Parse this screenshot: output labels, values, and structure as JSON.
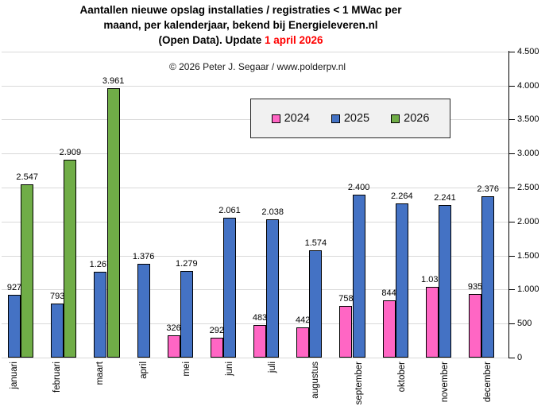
{
  "title": {
    "line1": "Aantallen nieuwe opslag installaties / registraties < 1 MWac per",
    "line2": "maand, per kalenderjaar, bekend bij Energieleveren.nl",
    "line3_black": "(Open Data). Update ",
    "line3_red": "1 april 2026",
    "red_color": "#ff0000"
  },
  "copyright": "© 2026 Peter J. Segaar / www.polderpv.nl",
  "chart_data": {
    "type": "bar",
    "title": "Aantallen nieuwe opslag installaties / registraties < 1 MWac per maand, per kalenderjaar, bekend bij Energieleveren.nl (Open Data). Update 1 april 2026",
    "xlabel": "",
    "ylabel": "",
    "categories": [
      "januari",
      "februari",
      "maart",
      "april",
      "mei",
      "juni",
      "juli",
      "augustus",
      "september",
      "oktober",
      "november",
      "december"
    ],
    "series": [
      {
        "name": "2024",
        "color": "#FF66C4",
        "values": [
          null,
          null,
          null,
          null,
          326,
          292,
          483,
          442,
          758,
          844,
          1036,
          935
        ]
      },
      {
        "name": "2025",
        "color": "#4472C4",
        "values": [
          927,
          793,
          1267,
          1376,
          1279,
          2061,
          2038,
          1574,
          2400,
          2264,
          2241,
          2376
        ]
      },
      {
        "name": "2026",
        "color": "#70AD47",
        "values": [
          2547,
          2909,
          3961,
          null,
          null,
          null,
          null,
          null,
          null,
          null,
          null,
          null
        ]
      }
    ],
    "ylim": [
      0,
      4500
    ],
    "ytick_step": 500,
    "yticks": [
      "0",
      "500",
      "1.000",
      "1.500",
      "2.000",
      "2.500",
      "3.000",
      "3.500",
      "4.000",
      "4.500"
    ],
    "grid": true,
    "axis_side": "right",
    "legend_position": "top-center",
    "number_format": "thousands-dot",
    "gridline_color": "#d9d9d9",
    "axis_color": "#000000"
  },
  "legend": {
    "items": [
      {
        "label": "2024",
        "color": "#FF66C4"
      },
      {
        "label": "2025",
        "color": "#4472C4"
      },
      {
        "label": "2026",
        "color": "#70AD47"
      }
    ]
  }
}
